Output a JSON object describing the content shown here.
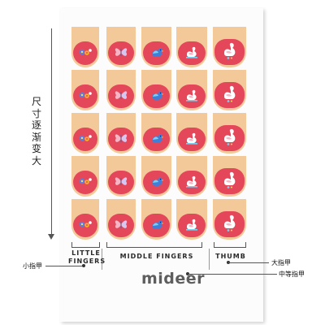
{
  "side_label": "尺寸逐渐变大",
  "labels": {
    "little": "LITTLE\nFINGERS",
    "middle": "MIDDLE FINGERS",
    "thumb": "THUMB"
  },
  "callouts": {
    "little_zh": "小指甲",
    "thumb_zh": "大指甲",
    "middle_zh": "中等指甲"
  },
  "brand": "mideer",
  "colors": {
    "nail_base": "#f3c99a",
    "nail_cap": "#e5475a",
    "sheet": "#fcfcfc",
    "brand": "#5e5e5e"
  },
  "grid": {
    "rows": 5,
    "columns": [
      "flowers",
      "butterfly",
      "bird",
      "swan-small",
      "swan-large"
    ]
  }
}
